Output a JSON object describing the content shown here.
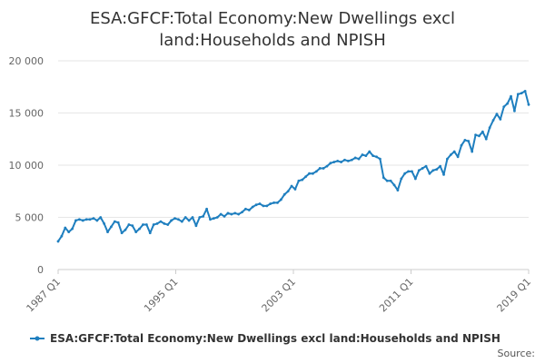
{
  "chart_data": {
    "type": "line",
    "title_lines": [
      "ESA:GFCF:Total Economy:New Dwellings excl",
      "land:Households and NPISH"
    ],
    "xlabel": "",
    "ylabel": "",
    "ylim": [
      0,
      20000
    ],
    "y_ticks": [
      "0",
      "5 000",
      "10 000",
      "15 000",
      "20 000"
    ],
    "y_tick_values": [
      0,
      5000,
      10000,
      15000,
      20000
    ],
    "x_ticks": [
      "1987 Q1",
      "1995 Q1",
      "2003 Q1",
      "2011 Q1",
      "2019 Q1"
    ],
    "x_start": "1987 Q1",
    "grid": true,
    "legend_position": "bottom",
    "series_color": "#1f7fbf",
    "series": [
      {
        "name": "ESA:GFCF:Total Economy:New Dwellings excl land:Households and NPISH",
        "values": [
          2700,
          3200,
          4000,
          3600,
          3900,
          4700,
          4800,
          4700,
          4800,
          4800,
          4900,
          4700,
          5000,
          4400,
          3600,
          4100,
          4600,
          4500,
          3500,
          3800,
          4300,
          4200,
          3600,
          3900,
          4300,
          4300,
          3500,
          4300,
          4400,
          4600,
          4400,
          4300,
          4700,
          4900,
          4800,
          4600,
          5000,
          4700,
          5000,
          4200,
          5000,
          5100,
          5800,
          4800,
          4900,
          5000,
          5300,
          5100,
          5400,
          5300,
          5400,
          5300,
          5500,
          5800,
          5700,
          6000,
          6200,
          6300,
          6100,
          6100,
          6300,
          6400,
          6400,
          6700,
          7200,
          7500,
          8000,
          7700,
          8500,
          8600,
          8900,
          9200,
          9200,
          9400,
          9700,
          9700,
          9900,
          10200,
          10300,
          10400,
          10300,
          10500,
          10400,
          10500,
          10700,
          10600,
          11000,
          10900,
          11300,
          10900,
          10800,
          10600,
          8800,
          8500,
          8500,
          8100,
          7600,
          8700,
          9200,
          9400,
          9400,
          8700,
          9500,
          9700,
          9900,
          9200,
          9500,
          9600,
          9900,
          9100,
          10600,
          11000,
          11300,
          10800,
          11900,
          12400,
          12300,
          11300,
          12900,
          12800,
          13200,
          12500,
          13600,
          14300,
          14900,
          14400,
          15600,
          15900,
          16600,
          15200,
          16800,
          16900,
          17100,
          15800
        ]
      }
    ],
    "source_label": "Source:"
  }
}
